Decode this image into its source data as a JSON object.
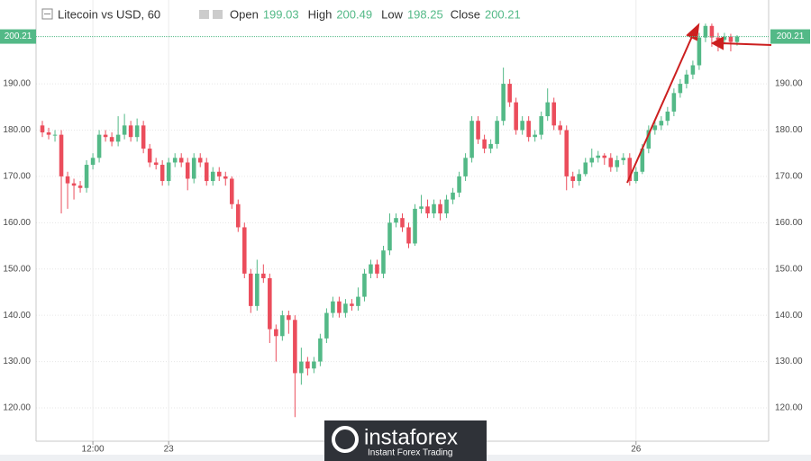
{
  "chart_data": {
    "type": "candlestick",
    "title": "Litecoin vs USD, 60",
    "ohlc": [
      {
        "label": "Open",
        "value": 199.03
      },
      {
        "label": "High",
        "value": 200.49
      },
      {
        "label": "Low",
        "value": 198.25
      },
      {
        "label": "Close",
        "value": 200.21
      }
    ],
    "last_price": 200.21,
    "up_color": "#53b987",
    "down_color": "#eb4d5c",
    "open": [
      181,
      179.5,
      179,
      179,
      170,
      168.5,
      168,
      167.5,
      172.5,
      174,
      179,
      178.5,
      177.5,
      179,
      181,
      178.5,
      181,
      176,
      173,
      172.5,
      169,
      173,
      174,
      173,
      169.5,
      174,
      173,
      169,
      171,
      170,
      169.5,
      164,
      159,
      149,
      142,
      149,
      148,
      137,
      135.5,
      140,
      139,
      127.5,
      130,
      128.5,
      130,
      135,
      140.5,
      143,
      140.5,
      142.5,
      142,
      144,
      149,
      151,
      149,
      154,
      160,
      161,
      159,
      155.5,
      163,
      163.5,
      162,
      164,
      162,
      165,
      166.5,
      170,
      174,
      182,
      178,
      176,
      177,
      182,
      190,
      186,
      180,
      182,
      178.5,
      179,
      183,
      186,
      181,
      180,
      170,
      169,
      170.5,
      173,
      174,
      174.5,
      174,
      172,
      173.5,
      174,
      169,
      171,
      176,
      180,
      181,
      182,
      184,
      188,
      190,
      192,
      194,
      200,
      202.5,
      200,
      199.5,
      200.2,
      199.03
    ],
    "high": [
      182,
      180.5,
      180,
      180,
      171,
      169.5,
      169,
      173.5,
      175,
      180,
      180,
      179.5,
      183,
      183.5,
      182,
      182.5,
      182,
      177,
      174,
      173.5,
      174,
      175,
      175,
      174,
      175,
      175,
      174,
      172,
      172,
      171,
      170,
      165,
      160,
      150,
      152,
      151,
      149,
      138,
      141,
      141,
      140,
      133,
      131,
      131,
      136,
      141.5,
      144,
      144,
      143.5,
      143.5,
      146,
      150,
      152,
      152,
      155,
      162,
      162,
      162,
      160,
      164,
      166,
      165,
      165,
      165,
      166,
      167.5,
      171,
      175,
      183,
      183,
      179,
      178,
      183,
      193.5,
      191,
      187,
      183,
      183,
      180,
      184,
      189,
      187,
      182,
      181,
      171,
      171.5,
      174,
      176,
      175.5,
      175,
      175,
      174.5,
      175,
      175,
      172,
      177,
      181,
      182,
      183,
      185,
      189,
      191,
      193,
      195,
      201,
      203,
      203,
      201,
      201,
      200.8,
      200.49
    ],
    "low": [
      178.5,
      178,
      177.5,
      162,
      163,
      165,
      166.5,
      166.5,
      171.5,
      173,
      177.5,
      176.5,
      176.5,
      178,
      177.5,
      177.5,
      175,
      172,
      171.5,
      168,
      168,
      172,
      172,
      167,
      168.5,
      172,
      168,
      168,
      169,
      168,
      163,
      158,
      148,
      140.5,
      141,
      147,
      134,
      130,
      134.5,
      136,
      118,
      125,
      127,
      127.5,
      129,
      134,
      139.5,
      139.5,
      139.5,
      141,
      141,
      143,
      148,
      148,
      148,
      153,
      159,
      158,
      154.5,
      155,
      162,
      161,
      161,
      160.5,
      161,
      164,
      165.5,
      169,
      173,
      177,
      175,
      175,
      176,
      181,
      185,
      179,
      179,
      177.5,
      177.5,
      178,
      182,
      180,
      179,
      167,
      167.5,
      168,
      170,
      172,
      173,
      172.5,
      171,
      171,
      172.5,
      168,
      168.5,
      170.5,
      175,
      179,
      180,
      181,
      183,
      187,
      189,
      191,
      193,
      199,
      198,
      197,
      198.5,
      197,
      198.25
    ],
    "close": [
      179.5,
      179,
      179,
      170,
      168.5,
      168,
      167.5,
      172.5,
      174,
      179,
      178.5,
      177.5,
      179,
      181,
      178.5,
      181,
      176,
      173,
      172.5,
      169,
      173,
      174,
      173,
      169.5,
      174,
      173,
      169,
      171,
      170,
      169.5,
      164,
      159,
      149,
      142,
      149,
      148,
      137,
      135.5,
      140,
      139,
      127.5,
      130,
      128.5,
      130,
      135,
      140.5,
      143,
      140.5,
      142.5,
      142,
      144,
      149,
      151,
      149,
      154,
      160,
      161,
      159,
      155.5,
      163,
      163.5,
      162,
      164,
      162,
      165,
      166.5,
      170,
      174,
      182,
      178,
      176,
      177,
      182,
      190,
      186,
      180,
      182,
      178.5,
      179,
      183,
      186,
      181,
      180,
      170,
      169,
      170.5,
      173,
      174,
      174.5,
      174,
      172,
      173.5,
      174,
      169,
      171,
      176,
      180,
      181,
      182,
      184,
      188,
      190,
      192,
      194,
      200,
      202.5,
      200,
      199.5,
      200.2,
      199.03,
      200.21
    ],
    "xlim": [
      -1,
      115
    ],
    "xticks": [
      {
        "value": 8,
        "label": "12:00"
      },
      {
        "value": 20,
        "label": "23"
      },
      {
        "value": 94,
        "label": "26"
      }
    ],
    "ylim": [
      112.8,
      208.1
    ],
    "yticks": [
      {
        "value": 120,
        "label": "120.00"
      },
      {
        "value": 130,
        "label": "130.00"
      },
      {
        "value": 140,
        "label": "140.00"
      },
      {
        "value": 150,
        "label": "150.00"
      },
      {
        "value": 160,
        "label": "160.00"
      },
      {
        "value": 170,
        "label": "170.00"
      },
      {
        "value": 180,
        "label": "180.00"
      },
      {
        "value": 190,
        "label": "190.00"
      }
    ],
    "grid": true
  },
  "watermark": {
    "brand": "instaforex",
    "tagline": "Instant Forex Trading"
  }
}
